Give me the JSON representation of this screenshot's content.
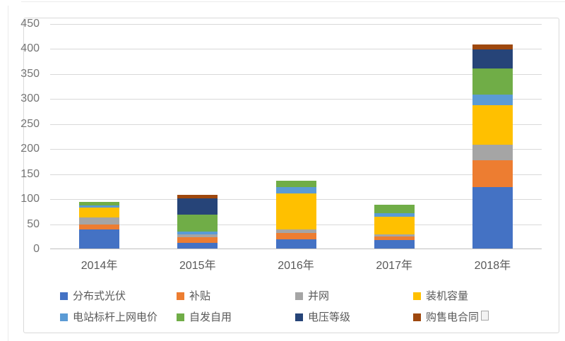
{
  "chart_data": {
    "type": "bar",
    "stacked": true,
    "title": "",
    "xlabel": "",
    "ylabel": "",
    "categories": [
      "2014年",
      "2015年",
      "2016年",
      "2017年",
      "2018年"
    ],
    "series": [
      {
        "name": "分布式光伏",
        "color": "#4472C4",
        "values": [
          38,
          12,
          18,
          17,
          123
        ]
      },
      {
        "name": "补贴",
        "color": "#ED7D31",
        "values": [
          10,
          11,
          13,
          7,
          54
        ]
      },
      {
        "name": "并网",
        "color": "#A5A5A5",
        "values": [
          14,
          5,
          7,
          4,
          31
        ]
      },
      {
        "name": "装机容量",
        "color": "#FFC000",
        "values": [
          20,
          0,
          72,
          35,
          79
        ]
      },
      {
        "name": "电站标杆上网电价",
        "color": "#5B9BD5",
        "values": [
          4,
          6,
          13,
          8,
          21
        ]
      },
      {
        "name": "自发自用",
        "color": "#70AD47",
        "values": [
          7,
          34,
          13,
          16,
          52
        ]
      },
      {
        "name": "电压等级",
        "color": "#264478",
        "values": [
          0,
          32,
          0,
          0,
          38
        ]
      },
      {
        "name": "购售电合同",
        "color": "#9E480E",
        "values": [
          0,
          8,
          0,
          0,
          10
        ]
      }
    ],
    "totals": [
      93,
      108,
      136,
      87,
      408
    ],
    "ylim": [
      0,
      450
    ],
    "ytick_step": 50,
    "ytick_labels": [
      "0",
      "50",
      "100",
      "150",
      "200",
      "250",
      "300",
      "350",
      "400",
      "450"
    ],
    "grid": true,
    "legend_position": "bottom",
    "legend_rows": 2,
    "legend_columns": 4,
    "gridline_color": "#D9D9D9",
    "axis_line_color": "#BFBFBF",
    "frame_border_color": "#D9D9D9",
    "axis_text_color": "#595959"
  }
}
